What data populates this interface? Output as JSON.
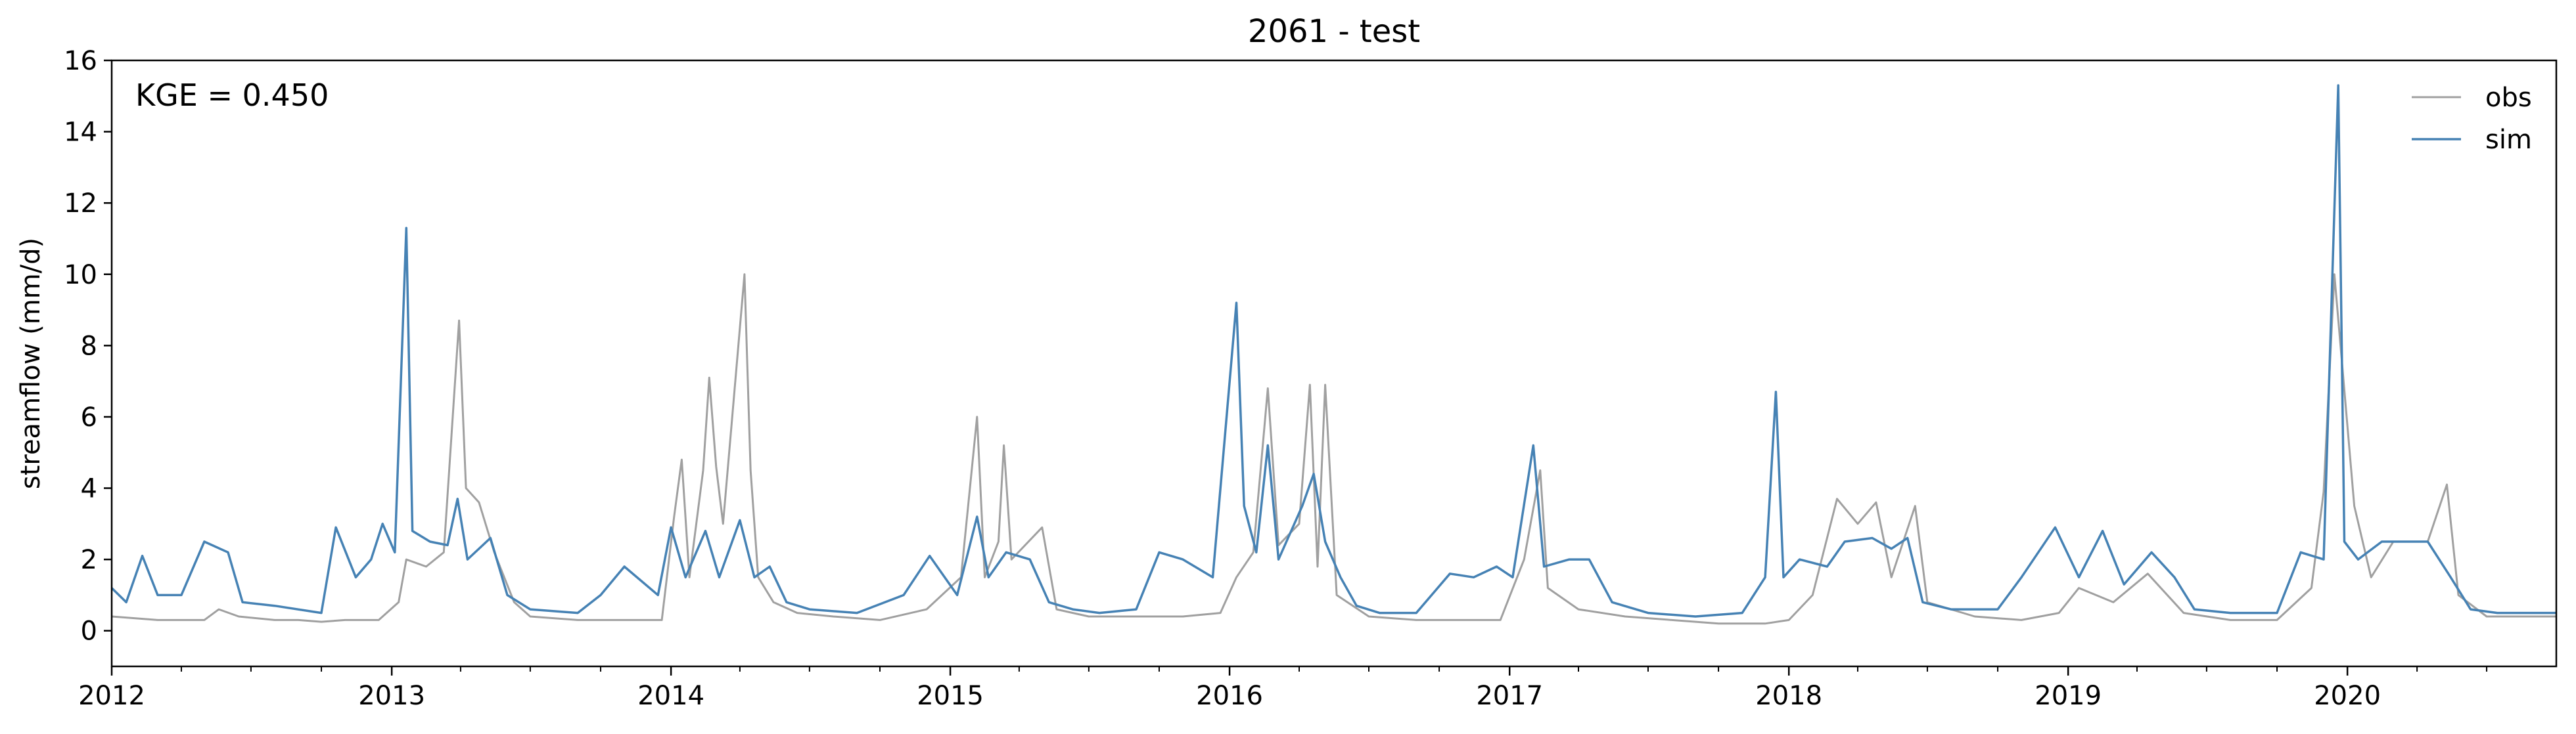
{
  "chart_data": {
    "type": "line",
    "title": "2061 - test",
    "ylabel": "streamflow (mm/d)",
    "xlabel": "",
    "ylim": [
      -1,
      16
    ],
    "xlim": [
      "2012-01-01",
      "2020-09-30"
    ],
    "y_ticks": [
      0,
      2,
      4,
      6,
      8,
      10,
      12,
      14,
      16
    ],
    "x_tick_labels": [
      "2012",
      "2013",
      "2014",
      "2015",
      "2016",
      "2017",
      "2018",
      "2019",
      "2020"
    ],
    "annotation": "KGE = 0.450",
    "legend_position": "upper right",
    "legend_frame": false,
    "grid": false,
    "series": [
      {
        "name": "obs",
        "color": "#a0a0a0",
        "points": [
          [
            "2012-01-01",
            0.4
          ],
          [
            "2012-02-01",
            0.35
          ],
          [
            "2012-03-01",
            0.3
          ],
          [
            "2012-04-01",
            0.3
          ],
          [
            "2012-05-01",
            0.3
          ],
          [
            "2012-05-20",
            0.6
          ],
          [
            "2012-06-15",
            0.4
          ],
          [
            "2012-08-01",
            0.3
          ],
          [
            "2012-09-01",
            0.3
          ],
          [
            "2012-10-01",
            0.25
          ],
          [
            "2012-11-01",
            0.3
          ],
          [
            "2012-12-15",
            0.3
          ],
          [
            "2013-01-10",
            0.8
          ],
          [
            "2013-01-20",
            2.0
          ],
          [
            "2013-02-15",
            1.8
          ],
          [
            "2013-03-10",
            2.2
          ],
          [
            "2013-03-30",
            8.7
          ],
          [
            "2013-04-08",
            4.0
          ],
          [
            "2013-04-25",
            3.6
          ],
          [
            "2013-05-15",
            2.2
          ],
          [
            "2013-06-10",
            0.8
          ],
          [
            "2013-07-01",
            0.4
          ],
          [
            "2013-09-01",
            0.3
          ],
          [
            "2013-11-01",
            0.3
          ],
          [
            "2013-12-20",
            0.3
          ],
          [
            "2014-01-05",
            3.2
          ],
          [
            "2014-01-15",
            4.8
          ],
          [
            "2014-01-25",
            1.5
          ],
          [
            "2014-02-12",
            4.5
          ],
          [
            "2014-02-20",
            7.1
          ],
          [
            "2014-03-01",
            4.6
          ],
          [
            "2014-03-10",
            3.0
          ],
          [
            "2014-04-07",
            10.0
          ],
          [
            "2014-04-15",
            4.5
          ],
          [
            "2014-04-25",
            1.5
          ],
          [
            "2014-05-15",
            0.8
          ],
          [
            "2014-06-15",
            0.5
          ],
          [
            "2014-08-01",
            0.4
          ],
          [
            "2014-10-01",
            0.3
          ],
          [
            "2014-12-01",
            0.6
          ],
          [
            "2015-01-15",
            1.5
          ],
          [
            "2015-02-05",
            6.0
          ],
          [
            "2015-02-15",
            1.5
          ],
          [
            "2015-03-05",
            2.5
          ],
          [
            "2015-03-12",
            5.2
          ],
          [
            "2015-03-22",
            2.0
          ],
          [
            "2015-05-01",
            2.9
          ],
          [
            "2015-05-20",
            0.6
          ],
          [
            "2015-07-01",
            0.4
          ],
          [
            "2015-09-01",
            0.4
          ],
          [
            "2015-11-01",
            0.4
          ],
          [
            "2015-12-20",
            0.5
          ],
          [
            "2016-01-10",
            1.5
          ],
          [
            "2016-02-01",
            2.2
          ],
          [
            "2016-02-20",
            6.8
          ],
          [
            "2016-03-05",
            2.4
          ],
          [
            "2016-04-01",
            3.0
          ],
          [
            "2016-04-15",
            6.9
          ],
          [
            "2016-04-25",
            1.8
          ],
          [
            "2016-05-05",
            6.9
          ],
          [
            "2016-05-20",
            1.0
          ],
          [
            "2016-07-01",
            0.4
          ],
          [
            "2016-09-01",
            0.3
          ],
          [
            "2016-11-01",
            0.3
          ],
          [
            "2016-12-20",
            0.3
          ],
          [
            "2017-01-20",
            2.0
          ],
          [
            "2017-02-10",
            4.5
          ],
          [
            "2017-02-20",
            1.2
          ],
          [
            "2017-04-01",
            0.6
          ],
          [
            "2017-06-01",
            0.4
          ],
          [
            "2017-08-01",
            0.3
          ],
          [
            "2017-10-01",
            0.2
          ],
          [
            "2017-12-01",
            0.2
          ],
          [
            "2018-01-01",
            0.3
          ],
          [
            "2018-02-01",
            1.0
          ],
          [
            "2018-03-05",
            3.7
          ],
          [
            "2018-04-01",
            3.0
          ],
          [
            "2018-04-25",
            3.6
          ],
          [
            "2018-05-15",
            1.5
          ],
          [
            "2018-06-15",
            3.5
          ],
          [
            "2018-07-01",
            0.8
          ],
          [
            "2018-09-01",
            0.4
          ],
          [
            "2018-11-01",
            0.3
          ],
          [
            "2018-12-20",
            0.5
          ],
          [
            "2019-01-15",
            1.2
          ],
          [
            "2019-03-01",
            0.8
          ],
          [
            "2019-04-15",
            1.6
          ],
          [
            "2019-06-01",
            0.5
          ],
          [
            "2019-08-01",
            0.3
          ],
          [
            "2019-10-01",
            0.3
          ],
          [
            "2019-11-15",
            1.2
          ],
          [
            "2019-12-01",
            3.9
          ],
          [
            "2019-12-15",
            10.0
          ],
          [
            "2019-12-25",
            7.5
          ],
          [
            "2020-01-10",
            3.5
          ],
          [
            "2020-02-01",
            1.5
          ],
          [
            "2020-03-01",
            2.5
          ],
          [
            "2020-04-15",
            2.5
          ],
          [
            "2020-05-10",
            4.1
          ],
          [
            "2020-05-25",
            1.0
          ],
          [
            "2020-07-01",
            0.4
          ],
          [
            "2020-09-30",
            0.4
          ]
        ]
      },
      {
        "name": "sim",
        "color": "#4682b4",
        "points": [
          [
            "2012-01-01",
            1.2
          ],
          [
            "2012-01-20",
            0.8
          ],
          [
            "2012-02-10",
            2.1
          ],
          [
            "2012-03-01",
            1.0
          ],
          [
            "2012-04-01",
            1.0
          ],
          [
            "2012-05-01",
            2.5
          ],
          [
            "2012-06-01",
            2.2
          ],
          [
            "2012-06-20",
            0.8
          ],
          [
            "2012-08-01",
            0.7
          ],
          [
            "2012-10-01",
            0.5
          ],
          [
            "2012-10-20",
            2.9
          ],
          [
            "2012-11-15",
            1.5
          ],
          [
            "2012-12-05",
            2.0
          ],
          [
            "2012-12-20",
            3.0
          ],
          [
            "2013-01-05",
            2.2
          ],
          [
            "2013-01-20",
            11.3
          ],
          [
            "2013-01-28",
            2.8
          ],
          [
            "2013-02-20",
            2.5
          ],
          [
            "2013-03-15",
            2.4
          ],
          [
            "2013-03-28",
            3.7
          ],
          [
            "2013-04-10",
            2.0
          ],
          [
            "2013-05-10",
            2.6
          ],
          [
            "2013-06-01",
            1.0
          ],
          [
            "2013-07-01",
            0.6
          ],
          [
            "2013-09-01",
            0.5
          ],
          [
            "2013-10-01",
            1.0
          ],
          [
            "2013-11-01",
            1.8
          ],
          [
            "2013-12-15",
            1.0
          ],
          [
            "2014-01-01",
            2.9
          ],
          [
            "2014-01-20",
            1.5
          ],
          [
            "2014-02-15",
            2.8
          ],
          [
            "2014-03-05",
            1.5
          ],
          [
            "2014-04-01",
            3.1
          ],
          [
            "2014-04-20",
            1.5
          ],
          [
            "2014-05-10",
            1.8
          ],
          [
            "2014-06-01",
            0.8
          ],
          [
            "2014-07-01",
            0.6
          ],
          [
            "2014-09-01",
            0.5
          ],
          [
            "2014-11-01",
            1.0
          ],
          [
            "2014-12-05",
            2.1
          ],
          [
            "2015-01-10",
            1.0
          ],
          [
            "2015-02-05",
            3.2
          ],
          [
            "2015-02-20",
            1.5
          ],
          [
            "2015-03-15",
            2.2
          ],
          [
            "2015-04-15",
            2.0
          ],
          [
            "2015-05-10",
            0.8
          ],
          [
            "2015-06-10",
            0.6
          ],
          [
            "2015-07-15",
            0.5
          ],
          [
            "2015-09-01",
            0.6
          ],
          [
            "2015-10-01",
            2.2
          ],
          [
            "2015-11-01",
            2.0
          ],
          [
            "2015-12-10",
            1.5
          ],
          [
            "2016-01-10",
            9.2
          ],
          [
            "2016-01-20",
            3.5
          ],
          [
            "2016-02-05",
            2.2
          ],
          [
            "2016-02-20",
            5.2
          ],
          [
            "2016-03-05",
            2.0
          ],
          [
            "2016-04-05",
            3.5
          ],
          [
            "2016-04-20",
            4.4
          ],
          [
            "2016-05-05",
            2.5
          ],
          [
            "2016-05-25",
            1.5
          ],
          [
            "2016-06-15",
            0.7
          ],
          [
            "2016-07-15",
            0.5
          ],
          [
            "2016-09-01",
            0.5
          ],
          [
            "2016-10-15",
            1.6
          ],
          [
            "2016-11-15",
            1.5
          ],
          [
            "2016-12-15",
            1.8
          ],
          [
            "2017-01-05",
            1.5
          ],
          [
            "2017-02-01",
            5.2
          ],
          [
            "2017-02-15",
            1.8
          ],
          [
            "2017-03-20",
            2.0
          ],
          [
            "2017-04-15",
            2.0
          ],
          [
            "2017-05-15",
            0.8
          ],
          [
            "2017-07-01",
            0.5
          ],
          [
            "2017-09-01",
            0.4
          ],
          [
            "2017-11-01",
            0.5
          ],
          [
            "2017-12-01",
            1.5
          ],
          [
            "2017-12-15",
            6.7
          ],
          [
            "2017-12-25",
            1.5
          ],
          [
            "2018-01-15",
            2.0
          ],
          [
            "2018-02-20",
            1.8
          ],
          [
            "2018-03-15",
            2.5
          ],
          [
            "2018-04-20",
            2.6
          ],
          [
            "2018-05-15",
            2.3
          ],
          [
            "2018-06-05",
            2.6
          ],
          [
            "2018-06-25",
            0.8
          ],
          [
            "2018-08-01",
            0.6
          ],
          [
            "2018-10-01",
            0.6
          ],
          [
            "2018-11-01",
            1.5
          ],
          [
            "2018-12-15",
            2.9
          ],
          [
            "2019-01-15",
            1.5
          ],
          [
            "2019-02-15",
            2.8
          ],
          [
            "2019-03-15",
            1.3
          ],
          [
            "2019-04-20",
            2.2
          ],
          [
            "2019-05-20",
            1.5
          ],
          [
            "2019-06-15",
            0.6
          ],
          [
            "2019-08-01",
            0.5
          ],
          [
            "2019-10-01",
            0.5
          ],
          [
            "2019-11-01",
            2.2
          ],
          [
            "2019-12-01",
            2.0
          ],
          [
            "2019-12-15",
            11.8
          ],
          [
            "2019-12-20",
            15.3
          ],
          [
            "2019-12-28",
            2.5
          ],
          [
            "2020-01-15",
            2.0
          ],
          [
            "2020-02-15",
            2.5
          ],
          [
            "2020-03-15",
            2.5
          ],
          [
            "2020-04-15",
            2.5
          ],
          [
            "2020-05-15",
            1.5
          ],
          [
            "2020-06-10",
            0.6
          ],
          [
            "2020-07-15",
            0.5
          ],
          [
            "2020-09-01",
            0.5
          ],
          [
            "2020-09-30",
            0.5
          ]
        ]
      }
    ]
  }
}
